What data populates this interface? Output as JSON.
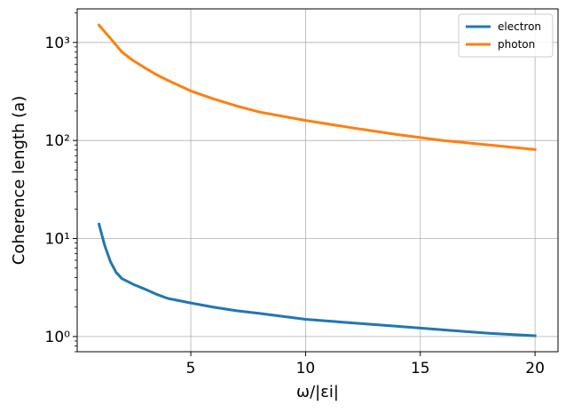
{
  "chart_data": {
    "type": "line",
    "xlabel": "ω/|εi|",
    "ylabel": "Coherence length (a)",
    "yscale": "log",
    "xlim": [
      0.05,
      21.0
    ],
    "ylim": [
      0.7,
      2200
    ],
    "grid": true,
    "legend_position": "top-right",
    "x_ticks": [
      {
        "value": 5,
        "label": "5"
      },
      {
        "value": 10,
        "label": "10"
      },
      {
        "value": 15,
        "label": "15"
      },
      {
        "value": 20,
        "label": "20"
      }
    ],
    "y_ticks": [
      {
        "value": 1,
        "label": "10⁰"
      },
      {
        "value": 10,
        "label": "10¹"
      },
      {
        "value": 100,
        "label": "10²"
      },
      {
        "value": 1000,
        "label": "10³"
      }
    ],
    "series": [
      {
        "name": "electron",
        "color": "#1f77b4",
        "x": [
          1.0,
          1.25,
          1.5,
          1.75,
          2.0,
          2.5,
          3.0,
          3.5,
          4.0,
          5.0,
          6.0,
          7.0,
          8.0,
          10.0,
          12.0,
          14.0,
          16.0,
          18.0,
          20.0
        ],
        "y": [
          14.0,
          8.5,
          5.8,
          4.5,
          3.9,
          3.4,
          3.05,
          2.7,
          2.45,
          2.2,
          1.99,
          1.83,
          1.72,
          1.5,
          1.38,
          1.27,
          1.17,
          1.08,
          1.02
        ]
      },
      {
        "name": "photon",
        "color": "#ff7f0e",
        "x": [
          1.0,
          1.5,
          2.0,
          2.5,
          3.0,
          3.5,
          4.0,
          5.0,
          6.0,
          7.0,
          8.0,
          10.0,
          12.0,
          14.0,
          16.0,
          18.0,
          20.0
        ],
        "y": [
          1500,
          1100,
          800,
          650,
          550,
          470,
          410,
          320,
          265,
          225,
          195,
          160,
          135,
          115,
          100,
          90,
          81
        ]
      }
    ]
  }
}
